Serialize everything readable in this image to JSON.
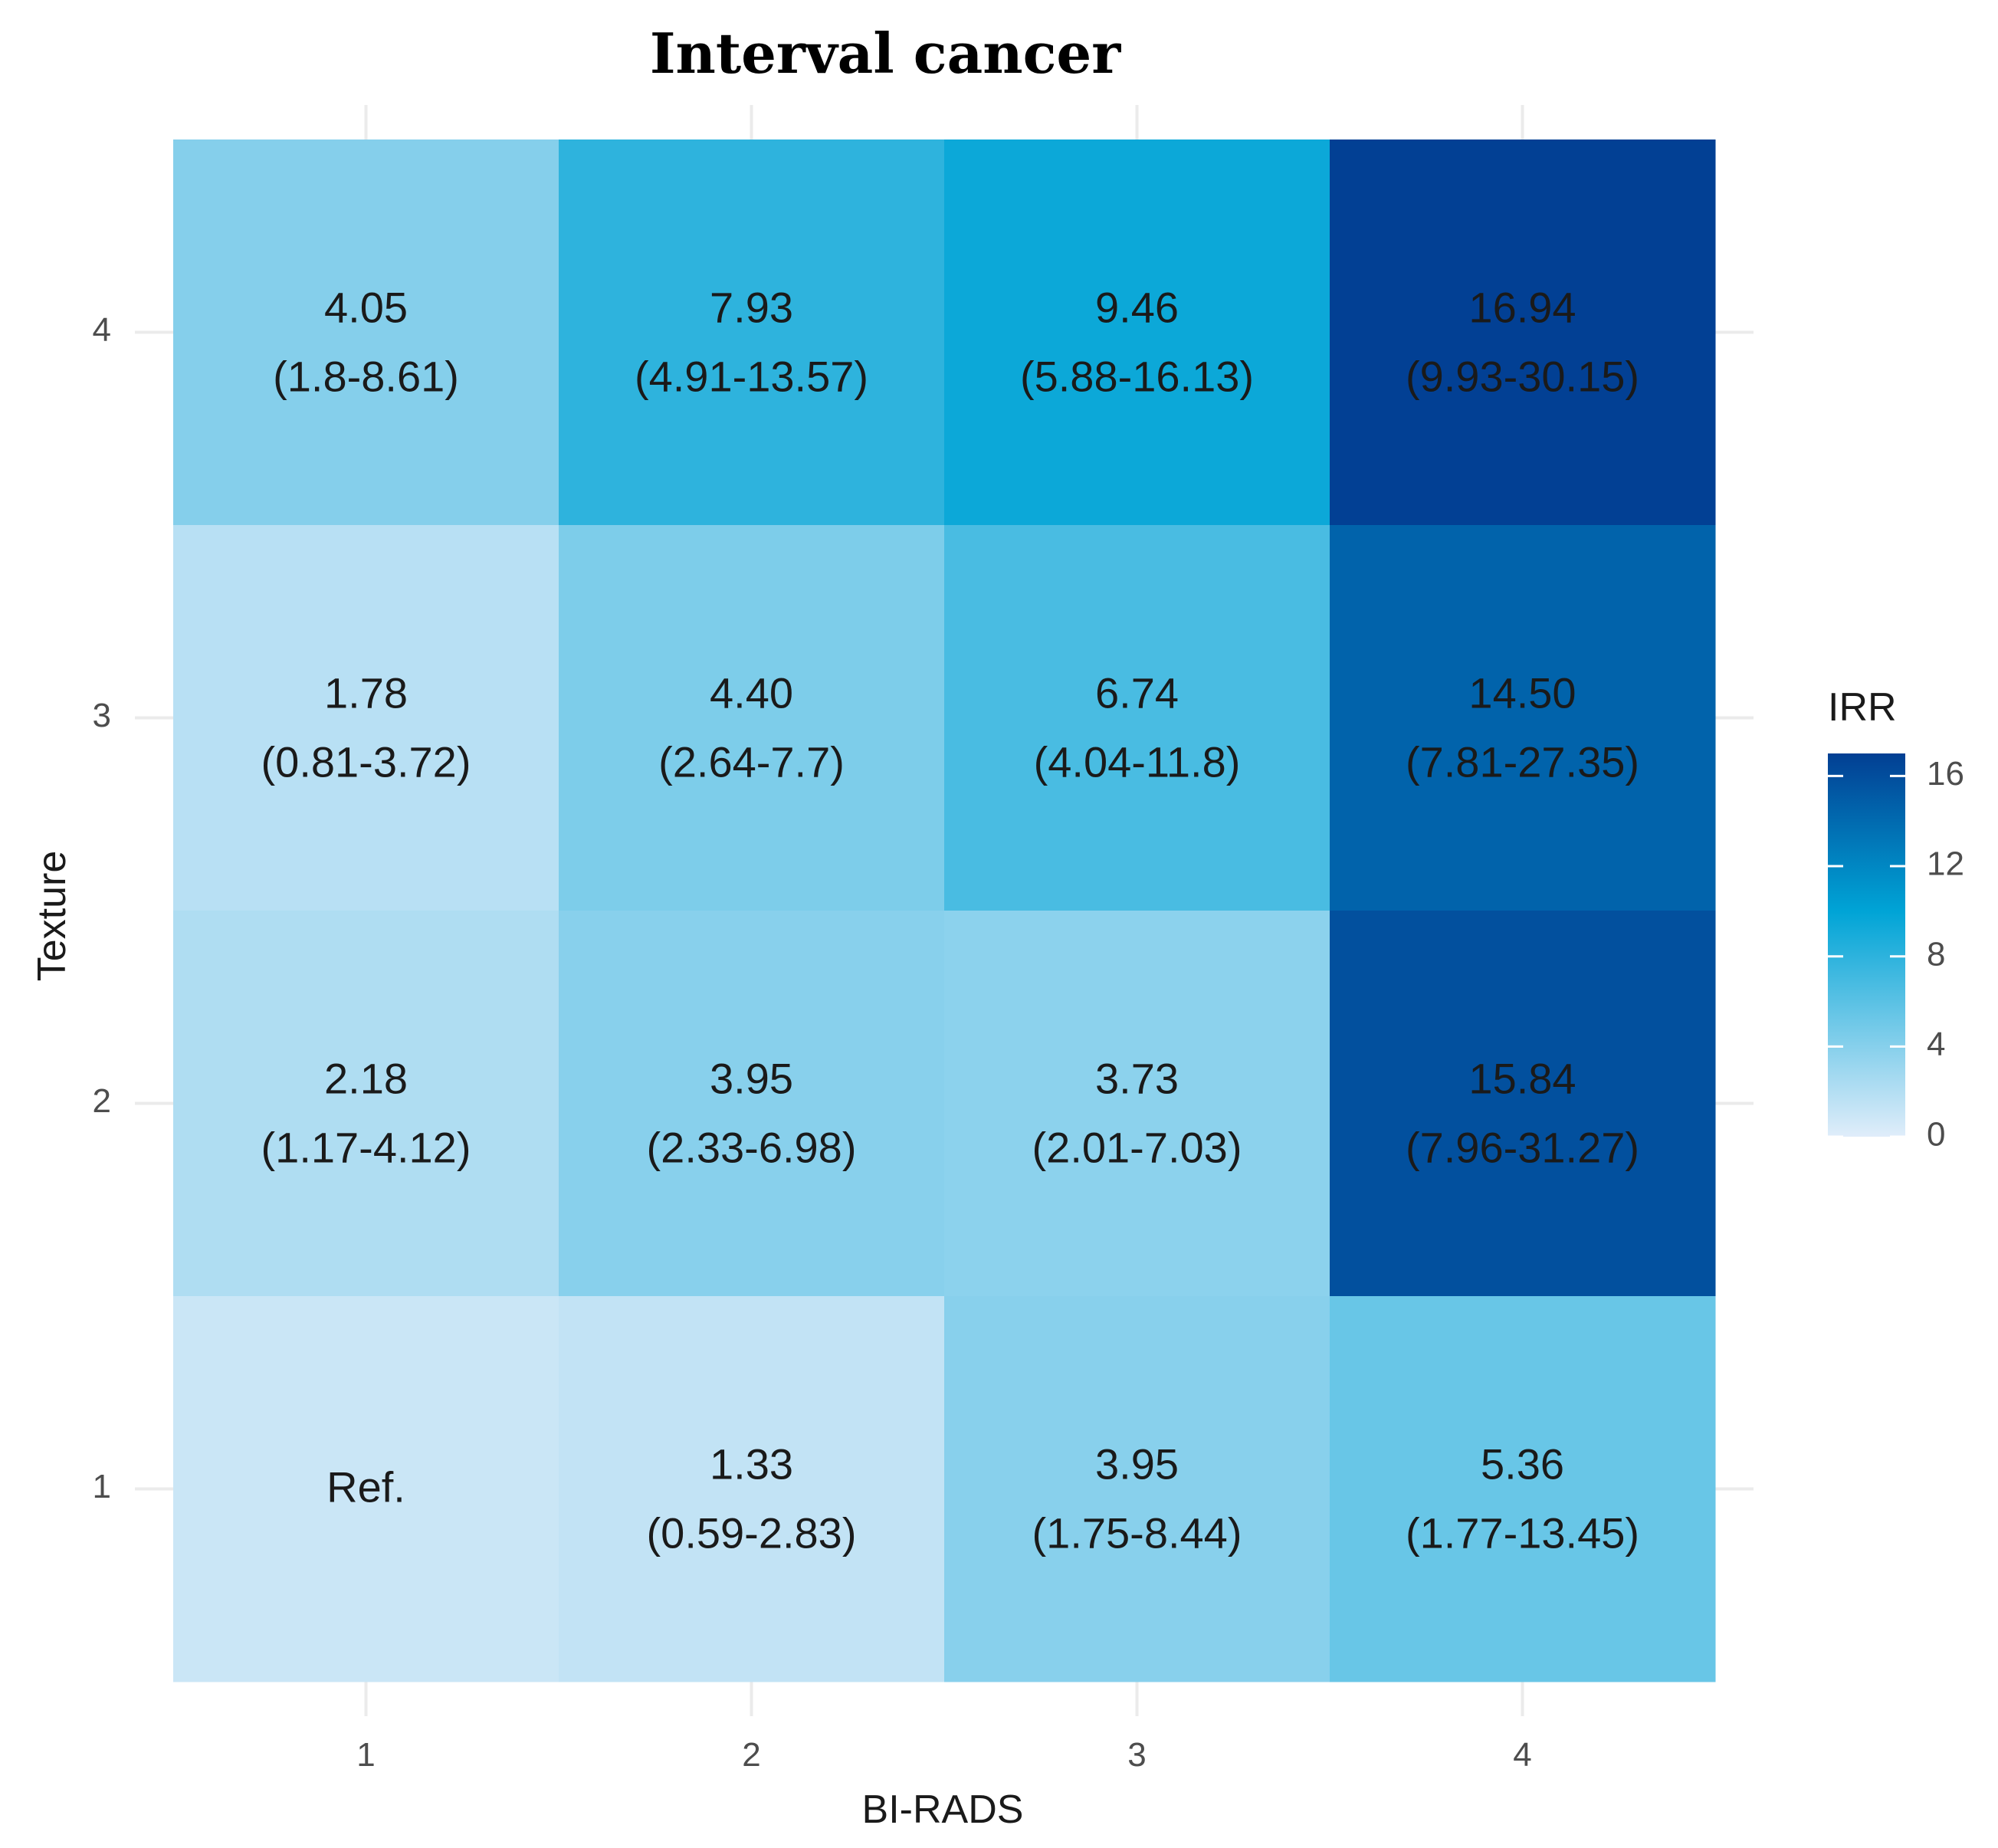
{
  "chart_data": {
    "type": "heatmap",
    "title": "Interval cancer",
    "xlabel": "BI-RADS",
    "ylabel": "Texture",
    "x_categories": [
      "1",
      "2",
      "3",
      "4"
    ],
    "y_categories": [
      "1",
      "2",
      "3",
      "4"
    ],
    "cells": [
      {
        "x": "1",
        "y": "4",
        "value": 4.05,
        "label": "4.05",
        "ci": "(1.8-8.61)"
      },
      {
        "x": "2",
        "y": "4",
        "value": 7.93,
        "label": "7.93",
        "ci": "(4.91-13.57)"
      },
      {
        "x": "3",
        "y": "4",
        "value": 9.46,
        "label": "9.46",
        "ci": "(5.88-16.13)"
      },
      {
        "x": "4",
        "y": "4",
        "value": 16.94,
        "label": "16.94",
        "ci": "(9.93-30.15)"
      },
      {
        "x": "1",
        "y": "3",
        "value": 1.78,
        "label": "1.78",
        "ci": "(0.81-3.72)"
      },
      {
        "x": "2",
        "y": "3",
        "value": 4.4,
        "label": "4.40",
        "ci": "(2.64-7.7)"
      },
      {
        "x": "3",
        "y": "3",
        "value": 6.74,
        "label": "6.74",
        "ci": "(4.04-11.8)"
      },
      {
        "x": "4",
        "y": "3",
        "value": 14.5,
        "label": "14.50",
        "ci": "(7.81-27.35)"
      },
      {
        "x": "1",
        "y": "2",
        "value": 2.18,
        "label": "2.18",
        "ci": "(1.17-4.12)"
      },
      {
        "x": "2",
        "y": "2",
        "value": 3.95,
        "label": "3.95",
        "ci": "(2.33-6.98)"
      },
      {
        "x": "3",
        "y": "2",
        "value": 3.73,
        "label": "3.73",
        "ci": "(2.01-7.03)"
      },
      {
        "x": "4",
        "y": "2",
        "value": 15.84,
        "label": "15.84",
        "ci": "(7.96-31.27)"
      },
      {
        "x": "1",
        "y": "1",
        "value": 1.0,
        "label": "Ref.",
        "ci": ""
      },
      {
        "x": "2",
        "y": "1",
        "value": 1.33,
        "label": "1.33",
        "ci": "(0.59-2.83)"
      },
      {
        "x": "3",
        "y": "1",
        "value": 3.95,
        "label": "3.95",
        "ci": "(1.75-8.44)"
      },
      {
        "x": "4",
        "y": "1",
        "value": 5.36,
        "label": "5.36",
        "ci": "(1.77-13.45)"
      }
    ],
    "legend": {
      "title": "IRR",
      "ticks": [
        0,
        4,
        8,
        12,
        16
      ],
      "range": [
        0,
        17
      ],
      "position": "right"
    },
    "colors": {
      "low": "#e0edfa",
      "mid": "#00a4d6",
      "high": "#023f93",
      "grid": "#ebebeb",
      "tick_text": "#4d4d4d"
    }
  }
}
